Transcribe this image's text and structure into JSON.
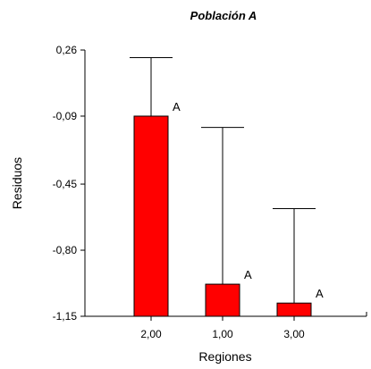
{
  "chart_data": {
    "type": "bar",
    "title": "Población A",
    "xlabel": "Regiones",
    "ylabel": "Residuos",
    "categories": [
      "2,00",
      "1,00",
      "3,00"
    ],
    "values": [
      -0.09,
      -0.98,
      -1.08
    ],
    "error_upper": [
      0.22,
      -0.15,
      -0.58
    ],
    "group_labels": [
      "A",
      "A",
      "A"
    ],
    "y_ticks": [
      0.26,
      -0.09,
      -0.45,
      -0.8,
      -1.15
    ],
    "y_tick_labels": [
      "0,26",
      "-0,09",
      "-0,45",
      "-0,80",
      "-1,15"
    ],
    "ylim": [
      -1.15,
      0.26
    ],
    "bar_color": "#ff0000",
    "grid": false,
    "legend": "none"
  }
}
